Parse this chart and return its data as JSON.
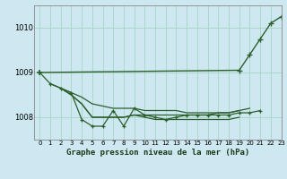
{
  "title": "Graphe pression niveau de la mer (hPa)",
  "background_color": "#cde8f0",
  "grid_color": "#a8d4c4",
  "line_color": "#2d5e2d",
  "xlim": [
    -0.5,
    23
  ],
  "ylim": [
    1007.5,
    1010.5
  ],
  "yticks": [
    1008,
    1009,
    1010
  ],
  "xticks": [
    0,
    1,
    2,
    3,
    4,
    5,
    6,
    7,
    8,
    9,
    10,
    11,
    12,
    13,
    14,
    15,
    16,
    17,
    18,
    19,
    20,
    21,
    22,
    23
  ],
  "line_rising": [
    1009.0,
    null,
    null,
    null,
    null,
    null,
    null,
    null,
    null,
    null,
    null,
    null,
    null,
    null,
    null,
    null,
    null,
    null,
    null,
    1009.05,
    1009.4,
    1009.75,
    1010.1,
    1010.25
  ],
  "line_wavy": [
    null,
    1008.75,
    1008.65,
    1008.55,
    1007.95,
    1007.8,
    1007.8,
    1008.15,
    1007.8,
    1008.2,
    1008.05,
    1008.0,
    1007.95,
    1008.0,
    1008.05,
    1008.05,
    1008.05,
    1008.05,
    1008.05,
    1008.1,
    1008.1,
    1008.15,
    null,
    null
  ],
  "line_decline_slow": [
    1009.0,
    1008.75,
    1008.65,
    1008.55,
    1008.45,
    1008.3,
    1008.25,
    1008.2,
    1008.2,
    1008.2,
    1008.15,
    1008.15,
    1008.15,
    1008.15,
    1008.1,
    1008.1,
    1008.1,
    1008.1,
    1008.1,
    1008.15,
    1008.2,
    null,
    null,
    null
  ],
  "line_decline_fast": [
    null,
    null,
    1008.65,
    1008.5,
    1008.3,
    1008.0,
    1008.0,
    1008.0,
    1008.0,
    1008.05,
    1008.0,
    1007.95,
    1007.95,
    1007.95,
    1007.95,
    1007.95,
    1007.95,
    1007.95,
    1007.95,
    1008.0,
    null,
    null,
    null,
    null
  ],
  "line_middle": [
    null,
    null,
    1008.65,
    1008.5,
    1008.3,
    1008.0,
    1008.0,
    1008.0,
    1008.0,
    1008.05,
    1008.05,
    1008.05,
    1008.05,
    1008.05,
    1008.05,
    1008.05,
    1008.05,
    1008.1,
    1008.1,
    1008.15,
    null,
    null,
    null,
    null
  ]
}
